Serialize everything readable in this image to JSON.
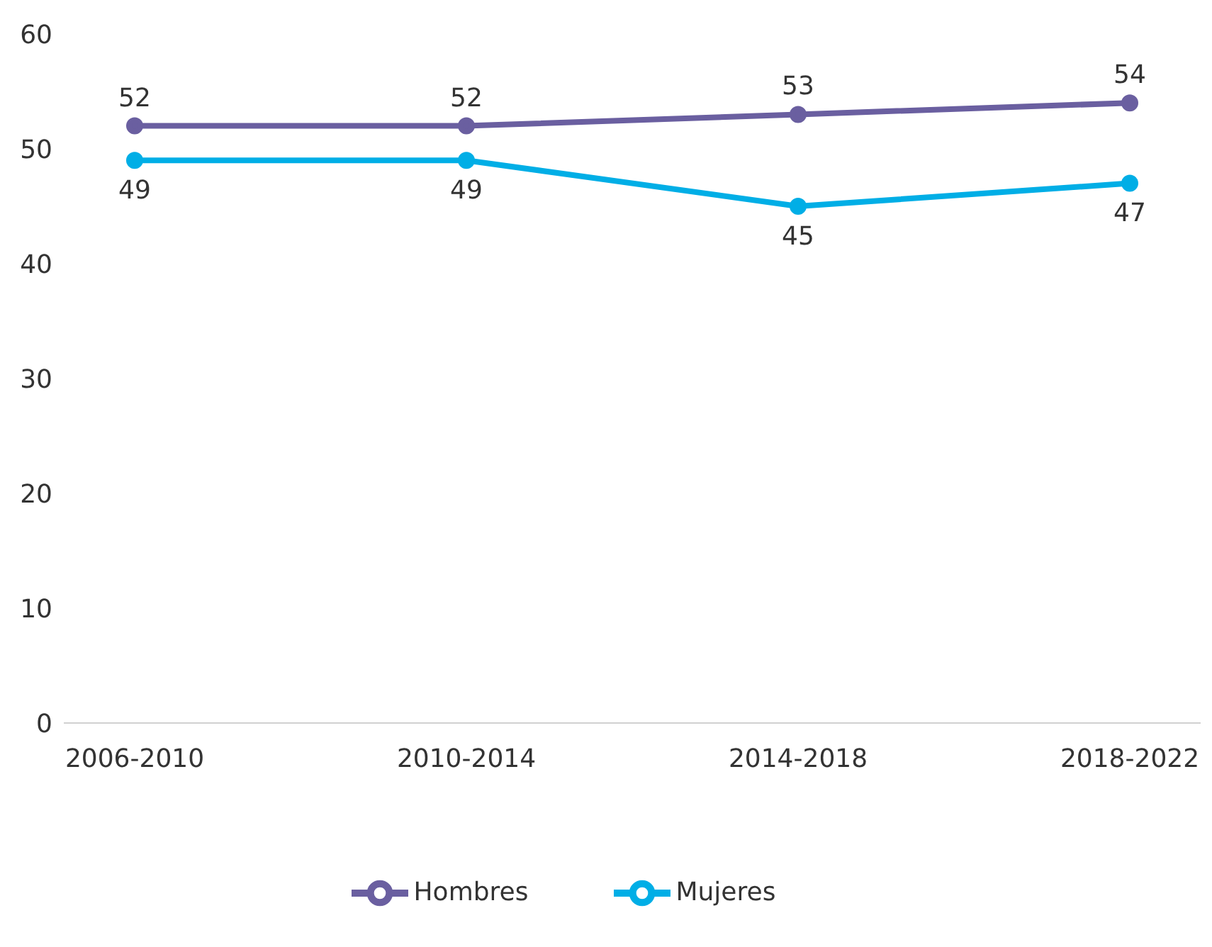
{
  "chart_data": {
    "type": "line",
    "categories": [
      "2006-2010",
      "2010-2014",
      "2014-2018",
      "2018-2022"
    ],
    "series": [
      {
        "name": "Hombres",
        "color": "#6a5fa0",
        "values": [
          52,
          52,
          53,
          54
        ]
      },
      {
        "name": "Mujeres",
        "color": "#00aee6",
        "values": [
          49,
          49,
          45,
          47
        ]
      }
    ],
    "ylim": [
      0,
      60
    ],
    "yticks": [
      0,
      10,
      20,
      30,
      40,
      50,
      60
    ],
    "data_labels": true,
    "legend": "bottom",
    "grid": false,
    "marker": "circle",
    "line_style": "solid"
  }
}
